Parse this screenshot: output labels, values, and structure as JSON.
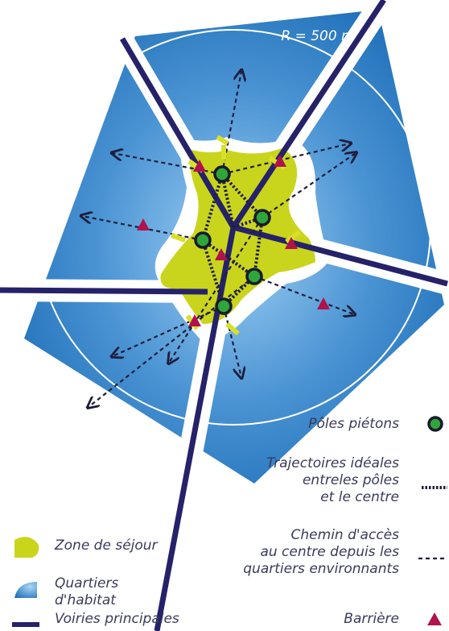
{
  "radius_label": "R = 500 m",
  "colors": {
    "district": "#2f7fc4",
    "stay_zone": "#c9d51c",
    "road": "#25226a",
    "pole": "#2ea63a",
    "barrier": "#b0124c",
    "path": "#1e1e3c",
    "label": "#3a3a5c"
  },
  "legend": {
    "poles": "Pôles piétons",
    "trajectories": [
      "Trajectoires idéales",
      "entreles pôles",
      "et le centre"
    ],
    "access": [
      "Chemin d'accès",
      "au centre depuis les",
      "quartiers environnants"
    ],
    "barrier": "Barrière",
    "stay_zone": "Zone de séjour",
    "district": [
      "Quartiers",
      "d'habitat"
    ],
    "roads": "Voiries principales"
  }
}
